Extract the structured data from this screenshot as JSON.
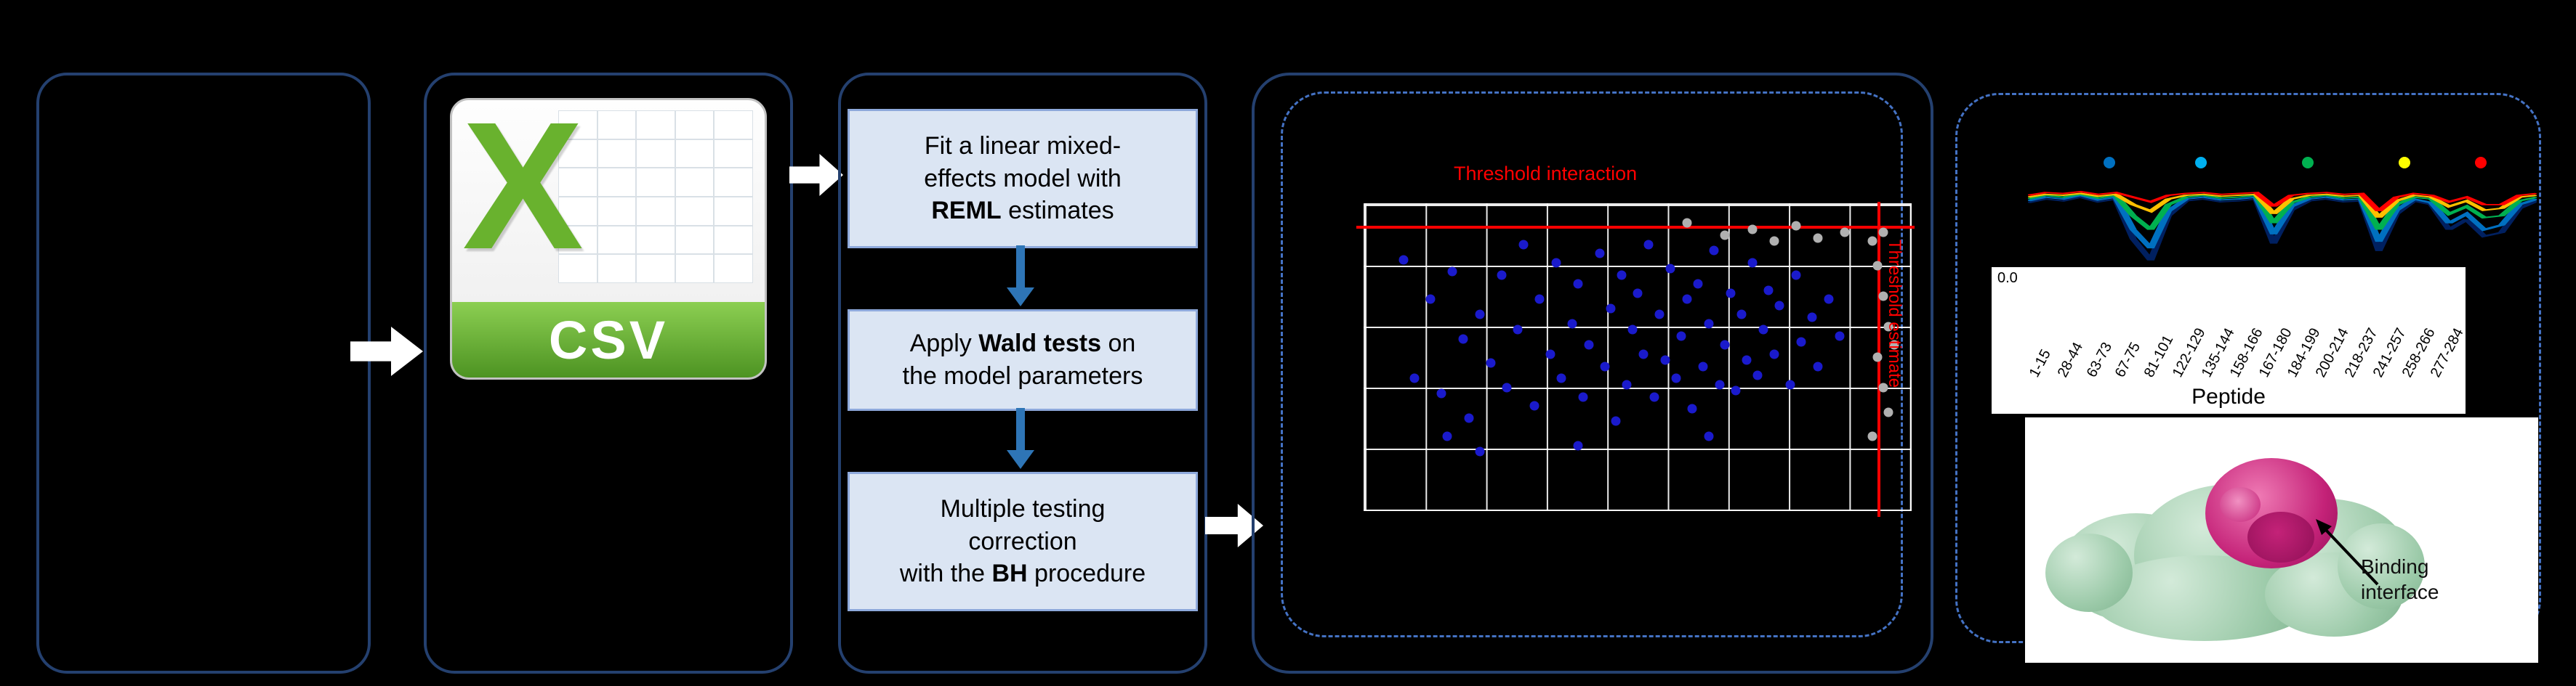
{
  "colors": {
    "panel_border": "#24406f",
    "dashed_border": "#4472c4",
    "flow_box_fill": "#dbe5f3",
    "flow_arrow": "#2e75b6",
    "threshold_red": "#ff0000",
    "scatter_blue": "#1a1acc",
    "scatter_gray": "#b0b0b0",
    "csv_green": "#69b22e"
  },
  "csv_icon": {
    "letter": "X",
    "label": "CSV"
  },
  "flow": {
    "step1_line1": "Fit a linear mixed-",
    "step1_line2": "effects model with",
    "step1_line3_bold": "REML",
    "step1_line3_rest": " estimates",
    "step2_line1_pre": "Apply ",
    "step2_line1_bold": "Wald tests",
    "step2_line1_post": " on",
    "step2_line2": "the model parameters",
    "step3_line1": "Multiple testing",
    "step3_line2": "correction",
    "step3_line3_pre": "with the ",
    "step3_line3_bold": "BH",
    "step3_line3_post": " procedure"
  },
  "protein": {
    "annotation_line1": "Binding",
    "annotation_line2": "interface"
  },
  "chart_data": [
    {
      "type": "scatter",
      "title": "",
      "xlabel": "",
      "ylabel": "",
      "thresholds": {
        "horizontal_label": "Threshold interaction",
        "vertical_label": "Threshold estimate",
        "hline_y_pct": 7,
        "vline_x_pct": 94
      },
      "grid": true,
      "points_blue": [
        [
          7,
          18
        ],
        [
          9,
          57
        ],
        [
          12,
          31
        ],
        [
          14,
          62
        ],
        [
          16,
          22
        ],
        [
          18,
          44
        ],
        [
          19,
          70
        ],
        [
          21,
          36
        ],
        [
          23,
          52
        ],
        [
          25,
          23
        ],
        [
          26,
          60
        ],
        [
          28,
          41
        ],
        [
          29,
          13
        ],
        [
          31,
          66
        ],
        [
          32,
          31
        ],
        [
          34,
          49
        ],
        [
          35,
          19
        ],
        [
          36,
          57
        ],
        [
          38,
          39
        ],
        [
          39,
          26
        ],
        [
          40,
          63
        ],
        [
          41,
          46
        ],
        [
          43,
          16
        ],
        [
          44,
          53
        ],
        [
          45,
          34
        ],
        [
          46,
          71
        ],
        [
          47,
          23
        ],
        [
          48,
          59
        ],
        [
          49,
          41
        ],
        [
          50,
          29
        ],
        [
          51,
          49
        ],
        [
          52,
          13
        ],
        [
          53,
          63
        ],
        [
          54,
          36
        ],
        [
          55,
          51
        ],
        [
          56,
          21
        ],
        [
          57,
          57
        ],
        [
          58,
          43
        ],
        [
          59,
          31
        ],
        [
          60,
          67
        ],
        [
          61,
          26
        ],
        [
          62,
          53
        ],
        [
          63,
          39
        ],
        [
          64,
          15
        ],
        [
          65,
          59
        ],
        [
          66,
          46
        ],
        [
          67,
          29
        ],
        [
          68,
          61
        ],
        [
          69,
          36
        ],
        [
          70,
          51
        ],
        [
          71,
          19
        ],
        [
          72,
          56
        ],
        [
          73,
          41
        ],
        [
          74,
          28
        ],
        [
          75,
          49
        ],
        [
          76,
          33
        ],
        [
          78,
          59
        ],
        [
          79,
          23
        ],
        [
          80,
          45
        ],
        [
          82,
          37
        ],
        [
          83,
          53
        ],
        [
          85,
          31
        ],
        [
          87,
          43
        ],
        [
          63,
          76
        ],
        [
          39,
          79
        ],
        [
          21,
          81
        ],
        [
          15,
          76
        ]
      ],
      "points_gray": [
        [
          93,
          12
        ],
        [
          94,
          20
        ],
        [
          95,
          30
        ],
        [
          96,
          40
        ],
        [
          94,
          50
        ],
        [
          95,
          60
        ],
        [
          96,
          68
        ],
        [
          93,
          76
        ],
        [
          95,
          9
        ],
        [
          97,
          46
        ],
        [
          71,
          8
        ],
        [
          75,
          12
        ],
        [
          79,
          7
        ],
        [
          83,
          11
        ],
        [
          59,
          6
        ],
        [
          66,
          10
        ],
        [
          88,
          9
        ]
      ]
    },
    {
      "type": "line",
      "xlabel": "Peptide",
      "ylabel_tick": "0.0",
      "categories": [
        "1-15",
        "28-44",
        "63-73",
        "67-75",
        "81-101",
        "122-129",
        "135-144",
        "158-166",
        "167-180",
        "184-199",
        "200-214",
        "218-237",
        "241-257",
        "258-266",
        "277-284"
      ],
      "top_dots": [
        {
          "color": "#0070c0",
          "x_pct": 16
        },
        {
          "color": "#00b0f0",
          "x_pct": 34
        },
        {
          "color": "#00b050",
          "x_pct": 55
        },
        {
          "color": "#ffff00",
          "x_pct": 74
        },
        {
          "color": "#ff0000",
          "x_pct": 89
        }
      ],
      "series": [
        {
          "name": "series-darkblue",
          "color": "#002060",
          "values": [
            26,
            22,
            24,
            20,
            25,
            22,
            65,
            88,
            40,
            24,
            22,
            25,
            24,
            22,
            70,
            34,
            24,
            22,
            25,
            24,
            78,
            38,
            24,
            28,
            55,
            44,
            62,
            58,
            32,
            24
          ]
        },
        {
          "name": "series-blue",
          "color": "#0070c0",
          "values": [
            24,
            20,
            22,
            18,
            23,
            20,
            55,
            75,
            35,
            22,
            20,
            23,
            22,
            20,
            60,
            30,
            22,
            20,
            23,
            22,
            68,
            34,
            22,
            26,
            48,
            38,
            55,
            50,
            28,
            22
          ]
        },
        {
          "name": "series-green",
          "color": "#00b050",
          "values": [
            22,
            18,
            20,
            17,
            21,
            18,
            40,
            55,
            28,
            20,
            18,
            21,
            20,
            18,
            48,
            26,
            20,
            18,
            21,
            20,
            55,
            28,
            20,
            22,
            38,
            30,
            42,
            40,
            24,
            20
          ]
        },
        {
          "name": "series-orange",
          "color": "#ffc000",
          "values": [
            20,
            17,
            18,
            16,
            19,
            17,
            28,
            35,
            22,
            18,
            17,
            19,
            18,
            17,
            38,
            22,
            18,
            17,
            19,
            18,
            42,
            24,
            18,
            20,
            30,
            24,
            34,
            32,
            20,
            18
          ]
        },
        {
          "name": "series-red",
          "color": "#ff0000",
          "values": [
            18,
            15,
            16,
            14,
            17,
            15,
            20,
            25,
            18,
            16,
            15,
            17,
            16,
            15,
            30,
            18,
            16,
            15,
            17,
            16,
            35,
            20,
            16,
            18,
            25,
            20,
            28,
            28,
            18,
            16
          ]
        }
      ]
    }
  ]
}
